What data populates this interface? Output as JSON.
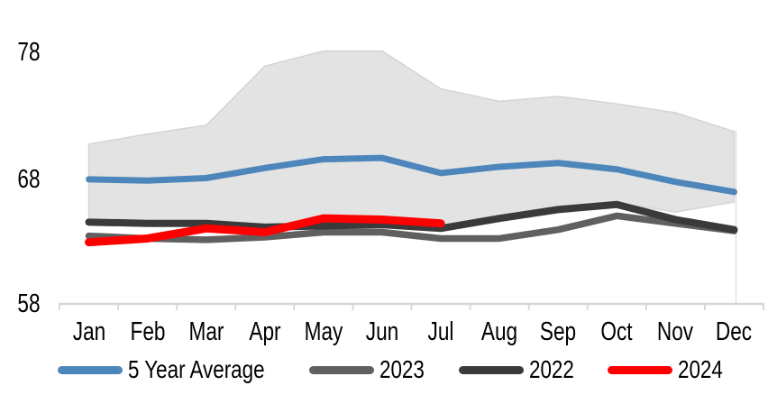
{
  "chart_data": {
    "type": "line",
    "title": "",
    "xlabel": "",
    "ylabel": "",
    "categories": [
      "Jan",
      "Feb",
      "Mar",
      "Apr",
      "May",
      "Jun",
      "Jul",
      "Aug",
      "Sep",
      "Oct",
      "Nov",
      "Dec"
    ],
    "ylim": [
      58,
      78
    ],
    "ytick_labels": [
      "78",
      "68",
      "58"
    ],
    "grid": "off",
    "legend_position": "bottom",
    "band": {
      "name": "5-year-range-band",
      "upper": [
        70.7,
        71.5,
        72.2,
        76.9,
        78.1,
        78.1,
        75.1,
        74.1,
        74.5,
        73.9,
        73.2,
        71.7
      ],
      "lower": [
        64.6,
        64.5,
        64.4,
        64.2,
        64.3,
        64.3,
        64.1,
        64.9,
        65.6,
        66.0,
        65.3,
        66.1
      ]
    },
    "series": [
      {
        "name": "5 Year Average",
        "color": "#4c86bb",
        "width": 7,
        "values": [
          67.9,
          67.8,
          68.0,
          68.8,
          69.5,
          69.6,
          68.4,
          68.9,
          69.2,
          68.7,
          67.7,
          66.9
        ]
      },
      {
        "name": "2023",
        "color": "#606060",
        "width": 7.5,
        "values": [
          63.4,
          63.2,
          63.1,
          63.3,
          63.7,
          63.7,
          63.2,
          63.2,
          63.9,
          65.0,
          64.4,
          63.8
        ]
      },
      {
        "name": "2022",
        "color": "#3a3a3a",
        "width": 8,
        "values": [
          64.5,
          64.4,
          64.4,
          64.1,
          64.2,
          64.3,
          64.0,
          64.8,
          65.5,
          65.9,
          64.7,
          63.9
        ]
      },
      {
        "name": "2024",
        "color": "#fe0000",
        "width": 9,
        "values": [
          62.9,
          63.2,
          64.0,
          63.7,
          64.8,
          64.7,
          64.4,
          null,
          null,
          null,
          null,
          null
        ]
      }
    ],
    "colors": {
      "band_fill": "#e3e3e3",
      "band_edge": "#d4d4d4",
      "axis": "#d6d6d6"
    }
  }
}
